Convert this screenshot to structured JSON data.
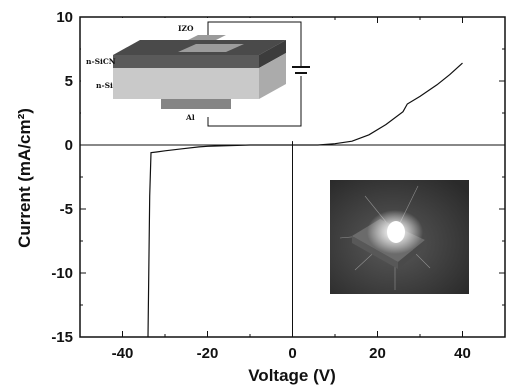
{
  "chart_data": {
    "type": "line",
    "xlabel": "Voltage (V)",
    "ylabel": "Current (mA/cm²)",
    "xlim": [
      -50,
      50
    ],
    "ylim": [
      -15,
      10
    ],
    "x_ticks": [
      "-40",
      "-20",
      "0",
      "20",
      "40"
    ],
    "y_ticks": [
      "-15",
      "-10",
      "-5",
      "0",
      "5",
      "10"
    ],
    "series": [
      {
        "points": [
          [
            -34,
            -15
          ],
          [
            -33.6,
            -4
          ],
          [
            -33.3,
            -0.6
          ],
          [
            -32,
            -0.55
          ],
          [
            -30,
            -0.45
          ],
          [
            -26,
            -0.3
          ],
          [
            -22,
            -0.15
          ],
          [
            -20,
            -0.1
          ],
          [
            -15,
            -0.05
          ],
          [
            -10,
            0
          ],
          [
            0,
            0
          ],
          [
            6,
            0
          ],
          [
            10,
            0.1
          ],
          [
            14,
            0.3
          ],
          [
            18,
            0.8
          ],
          [
            22,
            1.6
          ],
          [
            26,
            2.6
          ],
          [
            27,
            3.2
          ],
          [
            30,
            3.8
          ],
          [
            34,
            4.7
          ],
          [
            37,
            5.5
          ],
          [
            40,
            6.4
          ]
        ]
      }
    ],
    "grid": false
  },
  "inset": {
    "labels": {
      "top": "IZO",
      "layer1": "n-SiCN",
      "layer2": "n-Si",
      "bottom": "Al"
    }
  },
  "colors": {
    "line": "#111111",
    "axis": "#111111",
    "photo_bg": "#3a3a3a"
  }
}
